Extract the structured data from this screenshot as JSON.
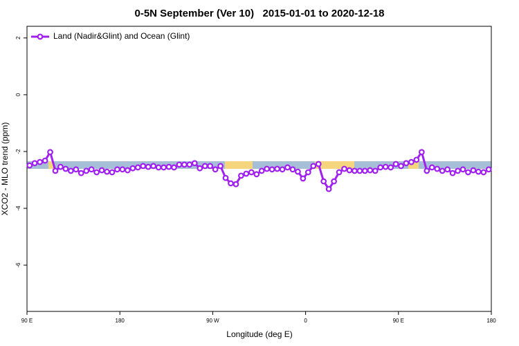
{
  "chart_data": {
    "type": "line",
    "title": "0-5N September (Ver 10)   2015-01-01 to 2020-12-18",
    "x_label": "Longitude (deg E)",
    "y_label": "XCO2 - MLO trend (ppm)",
    "xlim": [
      90,
      540
    ],
    "xticks": [
      {
        "value": 90,
        "label": "90 E"
      },
      {
        "value": 180,
        "label": "180"
      },
      {
        "value": 270,
        "label": "90 W"
      },
      {
        "value": 360,
        "label": "0"
      },
      {
        "value": 450,
        "label": "90 E"
      },
      {
        "value": 540,
        "label": "180"
      }
    ],
    "ylim": [
      -7.63,
      2.41
    ],
    "yticks": [
      2,
      0,
      -2,
      -4,
      -6
    ],
    "legend": "top-left",
    "x": [
      92.5,
      97.5,
      102.5,
      107.5,
      112.5,
      117.5,
      122.5,
      127.5,
      132.5,
      137.5,
      142.5,
      147.5,
      152.5,
      157.5,
      162.5,
      167.5,
      172.5,
      177.5,
      182.5,
      187.5,
      192.5,
      197.5,
      202.5,
      207.5,
      212.5,
      217.5,
      222.5,
      227.5,
      232.5,
      237.5,
      242.5,
      247.5,
      252.5,
      257.5,
      262.5,
      267.5,
      272.5,
      277.5,
      282.5,
      287.5,
      292.5,
      297.5,
      302.5,
      307.5,
      312.5,
      317.5,
      322.5,
      327.5,
      332.5,
      337.5,
      342.5,
      347.5,
      352.5,
      357.5,
      362.5,
      367.5,
      372.5,
      377.5,
      382.5,
      387.5,
      392.5,
      397.5,
      402.5,
      407.5,
      412.5,
      417.5,
      422.5,
      427.5,
      432.5,
      437.5,
      442.5,
      447.5,
      452.5,
      457.5,
      462.5,
      467.5,
      472.5,
      477.5,
      482.5,
      487.5,
      492.5,
      497.5,
      502.5,
      507.5,
      512.5,
      517.5,
      522.5,
      527.5,
      532.5,
      537.5
    ],
    "series": [
      {
        "name": "Land (Nadir&Glint) and Ocean (Glint)",
        "color": "#a020f0",
        "values": [
          -2.49,
          -2.41,
          -2.37,
          -2.32,
          -2.02,
          -2.68,
          -2.54,
          -2.61,
          -2.68,
          -2.63,
          -2.76,
          -2.68,
          -2.63,
          -2.73,
          -2.66,
          -2.71,
          -2.73,
          -2.63,
          -2.63,
          -2.66,
          -2.59,
          -2.56,
          -2.51,
          -2.54,
          -2.51,
          -2.56,
          -2.56,
          -2.54,
          -2.56,
          -2.46,
          -2.46,
          -2.46,
          -2.41,
          -2.59,
          -2.51,
          -2.51,
          -2.63,
          -2.51,
          -2.93,
          -3.12,
          -3.15,
          -2.85,
          -2.78,
          -2.73,
          -2.8,
          -2.68,
          -2.61,
          -2.63,
          -2.61,
          -2.63,
          -2.56,
          -2.63,
          -2.71,
          -2.95,
          -2.73,
          -2.51,
          -2.44,
          -3.05,
          -3.32,
          -3.05,
          -2.73,
          -2.61,
          -2.66,
          -2.68,
          -2.68,
          -2.68,
          -2.66,
          -2.68,
          -2.56,
          -2.54,
          -2.56,
          -2.44,
          -2.51,
          -2.41,
          -2.37,
          -2.29,
          -2.02,
          -2.68,
          -2.56,
          -2.61,
          -2.68,
          -2.63,
          -2.76,
          -2.68,
          -2.63,
          -2.73,
          -2.66,
          -2.71,
          -2.73,
          -2.63
        ]
      }
    ]
  }
}
